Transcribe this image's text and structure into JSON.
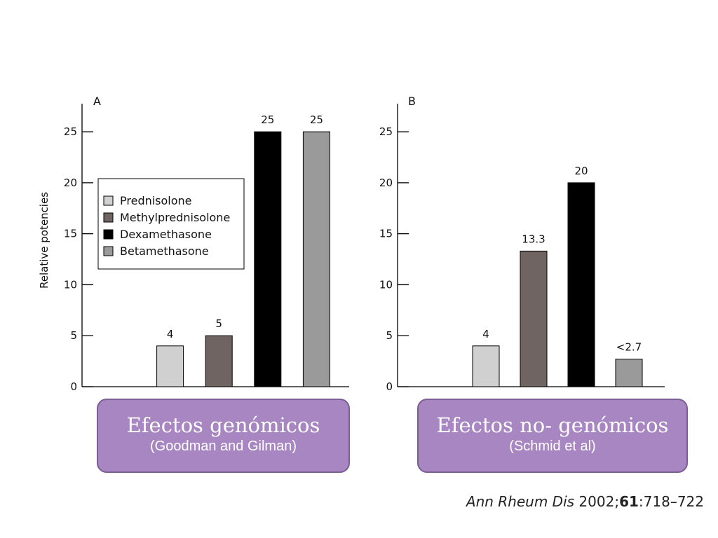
{
  "chart_data": [
    {
      "type": "bar",
      "panel_label": "A",
      "ylabel": "Relative potencies",
      "ylim": [
        0,
        27
      ],
      "yticks": [
        0,
        5,
        10,
        15,
        20,
        25
      ],
      "categories": [
        "",
        "Prednisolone",
        "Methylprednisolone",
        "Dexamethasone",
        "Betamethasone"
      ],
      "values": [
        null,
        4,
        5,
        25,
        25
      ],
      "value_labels": [
        "",
        "4",
        "5",
        "25",
        "25"
      ],
      "colors": [
        "#ffffff",
        "#d0d0d0",
        "#6f6462",
        "#000000",
        "#9a9a9a"
      ],
      "legend": {
        "position": "upper-left",
        "entries": [
          {
            "label": "Prednisolone",
            "color": "#d0d0d0"
          },
          {
            "label": "Methylprednisolone",
            "color": "#6f6462"
          },
          {
            "label": "Dexamethasone",
            "color": "#000000"
          },
          {
            "label": "Betamethasone",
            "color": "#9a9a9a"
          }
        ]
      },
      "grid": false
    },
    {
      "type": "bar",
      "panel_label": "B",
      "ylabel": "",
      "ylim": [
        0,
        27
      ],
      "yticks": [
        0,
        5,
        10,
        15,
        20,
        25
      ],
      "categories": [
        "",
        "Prednisolone",
        "Methylprednisolone",
        "Dexamethasone",
        "Betamethasone"
      ],
      "values": [
        null,
        4,
        13.3,
        20,
        2.7
      ],
      "value_labels": [
        "",
        "4",
        "13.3",
        "20",
        "<2.7"
      ],
      "colors": [
        "#ffffff",
        "#d0d0d0",
        "#6f6462",
        "#000000",
        "#9a9a9a"
      ],
      "grid": false
    }
  ],
  "callouts": {
    "a": {
      "main": "Efectos genómicos",
      "open": "(",
      "sub": "Goodman and Gilman)"
    },
    "b": {
      "main": "Efectos no- genómicos",
      "open": "(",
      "sub": "Schmid et al)"
    }
  },
  "citation": {
    "journal": "Ann Rheum Dis",
    "year": "2002;",
    "volume": "61",
    "pages": ":718–722"
  }
}
